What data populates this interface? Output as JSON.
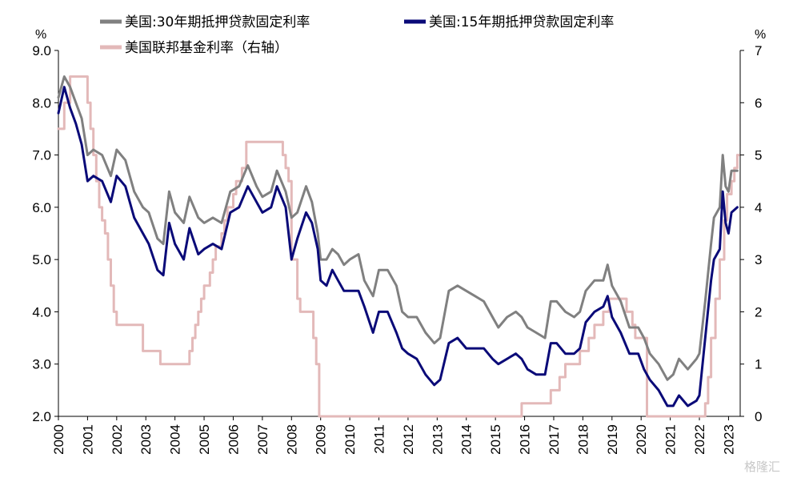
{
  "chart_data": {
    "type": "line",
    "left_unit": "%",
    "right_unit": "%",
    "ylim_left": [
      2.0,
      9.0
    ],
    "ylim_right": [
      0,
      7
    ],
    "left_ticks": [
      "2.0",
      "3.0",
      "4.0",
      "5.0",
      "6.0",
      "7.0",
      "8.0",
      "9.0"
    ],
    "right_ticks": [
      "0",
      "1",
      "2",
      "3",
      "4",
      "5",
      "6",
      "7"
    ],
    "x_ticks": [
      "2000",
      "2001",
      "2002",
      "2003",
      "2004",
      "2005",
      "2006",
      "2007",
      "2008",
      "2009",
      "2010",
      "2011",
      "2012",
      "2013",
      "2014",
      "2015",
      "2016",
      "2017",
      "2018",
      "2019",
      "2020",
      "2021",
      "2022",
      "2023"
    ],
    "xlim": [
      2000.0,
      2023.4
    ],
    "legend_placement": "top",
    "series": [
      {
        "name": "美国:30年期抵押贷款固定利率",
        "axis": "left",
        "color": "#808080",
        "points": [
          [
            2000.0,
            8.1
          ],
          [
            2000.2,
            8.5
          ],
          [
            2000.4,
            8.3
          ],
          [
            2000.6,
            8.0
          ],
          [
            2000.8,
            7.7
          ],
          [
            2001.0,
            7.0
          ],
          [
            2001.2,
            7.1
          ],
          [
            2001.5,
            7.0
          ],
          [
            2001.8,
            6.6
          ],
          [
            2002.0,
            7.1
          ],
          [
            2002.3,
            6.9
          ],
          [
            2002.6,
            6.3
          ],
          [
            2002.9,
            6.0
          ],
          [
            2003.1,
            5.9
          ],
          [
            2003.4,
            5.4
          ],
          [
            2003.6,
            5.3
          ],
          [
            2003.8,
            6.3
          ],
          [
            2004.0,
            5.9
          ],
          [
            2004.3,
            5.7
          ],
          [
            2004.5,
            6.2
          ],
          [
            2004.8,
            5.8
          ],
          [
            2005.0,
            5.7
          ],
          [
            2005.3,
            5.8
          ],
          [
            2005.6,
            5.7
          ],
          [
            2005.9,
            6.3
          ],
          [
            2006.2,
            6.4
          ],
          [
            2006.5,
            6.8
          ],
          [
            2006.8,
            6.4
          ],
          [
            2007.0,
            6.2
          ],
          [
            2007.3,
            6.3
          ],
          [
            2007.5,
            6.7
          ],
          [
            2007.8,
            6.3
          ],
          [
            2008.0,
            5.8
          ],
          [
            2008.2,
            5.9
          ],
          [
            2008.5,
            6.4
          ],
          [
            2008.7,
            6.1
          ],
          [
            2008.9,
            5.5
          ],
          [
            2009.0,
            5.0
          ],
          [
            2009.2,
            5.0
          ],
          [
            2009.4,
            5.2
          ],
          [
            2009.6,
            5.1
          ],
          [
            2009.8,
            4.9
          ],
          [
            2010.0,
            5.0
          ],
          [
            2010.3,
            5.1
          ],
          [
            2010.5,
            4.6
          ],
          [
            2010.8,
            4.3
          ],
          [
            2011.0,
            4.8
          ],
          [
            2011.3,
            4.8
          ],
          [
            2011.6,
            4.5
          ],
          [
            2011.8,
            4.0
          ],
          [
            2012.0,
            3.9
          ],
          [
            2012.3,
            3.9
          ],
          [
            2012.6,
            3.6
          ],
          [
            2012.9,
            3.4
          ],
          [
            2013.1,
            3.5
          ],
          [
            2013.4,
            4.4
          ],
          [
            2013.7,
            4.5
          ],
          [
            2014.0,
            4.4
          ],
          [
            2014.3,
            4.3
          ],
          [
            2014.6,
            4.2
          ],
          [
            2014.9,
            3.9
          ],
          [
            2015.1,
            3.7
          ],
          [
            2015.4,
            3.9
          ],
          [
            2015.7,
            4.0
          ],
          [
            2015.9,
            3.9
          ],
          [
            2016.1,
            3.7
          ],
          [
            2016.4,
            3.6
          ],
          [
            2016.7,
            3.5
          ],
          [
            2016.9,
            4.2
          ],
          [
            2017.1,
            4.2
          ],
          [
            2017.4,
            4.0
          ],
          [
            2017.7,
            3.9
          ],
          [
            2017.9,
            4.0
          ],
          [
            2018.1,
            4.4
          ],
          [
            2018.4,
            4.6
          ],
          [
            2018.7,
            4.6
          ],
          [
            2018.85,
            4.9
          ],
          [
            2019.0,
            4.5
          ],
          [
            2019.3,
            4.2
          ],
          [
            2019.6,
            3.7
          ],
          [
            2019.9,
            3.7
          ],
          [
            2020.1,
            3.5
          ],
          [
            2020.3,
            3.2
          ],
          [
            2020.6,
            3.0
          ],
          [
            2020.9,
            2.7
          ],
          [
            2021.1,
            2.8
          ],
          [
            2021.3,
            3.1
          ],
          [
            2021.6,
            2.9
          ],
          [
            2021.9,
            3.1
          ],
          [
            2022.0,
            3.2
          ],
          [
            2022.2,
            4.2
          ],
          [
            2022.4,
            5.3
          ],
          [
            2022.5,
            5.8
          ],
          [
            2022.7,
            6.0
          ],
          [
            2022.8,
            7.0
          ],
          [
            2022.9,
            6.4
          ],
          [
            2023.0,
            6.3
          ],
          [
            2023.1,
            6.7
          ],
          [
            2023.3,
            6.7
          ]
        ]
      },
      {
        "name": "美国:15年期抵押贷款固定利率",
        "axis": "left",
        "color": "#0a0a78",
        "points": [
          [
            2000.0,
            7.8
          ],
          [
            2000.2,
            8.3
          ],
          [
            2000.4,
            7.9
          ],
          [
            2000.6,
            7.6
          ],
          [
            2000.8,
            7.2
          ],
          [
            2001.0,
            6.5
          ],
          [
            2001.2,
            6.6
          ],
          [
            2001.5,
            6.5
          ],
          [
            2001.8,
            6.1
          ],
          [
            2002.0,
            6.6
          ],
          [
            2002.3,
            6.4
          ],
          [
            2002.6,
            5.8
          ],
          [
            2002.9,
            5.5
          ],
          [
            2003.1,
            5.3
          ],
          [
            2003.4,
            4.8
          ],
          [
            2003.6,
            4.7
          ],
          [
            2003.8,
            5.7
          ],
          [
            2004.0,
            5.3
          ],
          [
            2004.3,
            5.0
          ],
          [
            2004.5,
            5.6
          ],
          [
            2004.8,
            5.1
          ],
          [
            2005.0,
            5.2
          ],
          [
            2005.3,
            5.3
          ],
          [
            2005.6,
            5.2
          ],
          [
            2005.9,
            5.9
          ],
          [
            2006.2,
            6.0
          ],
          [
            2006.5,
            6.4
          ],
          [
            2006.8,
            6.1
          ],
          [
            2007.0,
            5.9
          ],
          [
            2007.3,
            6.0
          ],
          [
            2007.5,
            6.4
          ],
          [
            2007.8,
            6.0
          ],
          [
            2008.0,
            5.0
          ],
          [
            2008.2,
            5.4
          ],
          [
            2008.5,
            5.9
          ],
          [
            2008.7,
            5.7
          ],
          [
            2008.9,
            5.2
          ],
          [
            2009.0,
            4.6
          ],
          [
            2009.2,
            4.5
          ],
          [
            2009.4,
            4.8
          ],
          [
            2009.6,
            4.6
          ],
          [
            2009.8,
            4.4
          ],
          [
            2010.0,
            4.4
          ],
          [
            2010.3,
            4.4
          ],
          [
            2010.5,
            4.1
          ],
          [
            2010.8,
            3.6
          ],
          [
            2011.0,
            4.0
          ],
          [
            2011.3,
            4.0
          ],
          [
            2011.6,
            3.6
          ],
          [
            2011.8,
            3.3
          ],
          [
            2012.0,
            3.2
          ],
          [
            2012.3,
            3.1
          ],
          [
            2012.6,
            2.8
          ],
          [
            2012.9,
            2.6
          ],
          [
            2013.1,
            2.7
          ],
          [
            2013.4,
            3.4
          ],
          [
            2013.7,
            3.5
          ],
          [
            2014.0,
            3.3
          ],
          [
            2014.3,
            3.3
          ],
          [
            2014.6,
            3.3
          ],
          [
            2014.9,
            3.1
          ],
          [
            2015.1,
            3.0
          ],
          [
            2015.4,
            3.1
          ],
          [
            2015.7,
            3.2
          ],
          [
            2015.9,
            3.1
          ],
          [
            2016.1,
            2.9
          ],
          [
            2016.4,
            2.8
          ],
          [
            2016.7,
            2.8
          ],
          [
            2016.9,
            3.4
          ],
          [
            2017.1,
            3.4
          ],
          [
            2017.4,
            3.2
          ],
          [
            2017.7,
            3.2
          ],
          [
            2017.9,
            3.3
          ],
          [
            2018.1,
            3.8
          ],
          [
            2018.4,
            4.0
          ],
          [
            2018.7,
            4.1
          ],
          [
            2018.85,
            4.3
          ],
          [
            2019.0,
            3.9
          ],
          [
            2019.3,
            3.6
          ],
          [
            2019.6,
            3.2
          ],
          [
            2019.9,
            3.2
          ],
          [
            2020.1,
            2.9
          ],
          [
            2020.3,
            2.7
          ],
          [
            2020.6,
            2.5
          ],
          [
            2020.9,
            2.2
          ],
          [
            2021.1,
            2.2
          ],
          [
            2021.3,
            2.4
          ],
          [
            2021.6,
            2.2
          ],
          [
            2021.9,
            2.3
          ],
          [
            2022.0,
            2.4
          ],
          [
            2022.2,
            3.5
          ],
          [
            2022.4,
            4.6
          ],
          [
            2022.5,
            5.0
          ],
          [
            2022.7,
            5.2
          ],
          [
            2022.8,
            6.3
          ],
          [
            2022.9,
            5.7
          ],
          [
            2023.0,
            5.5
          ],
          [
            2023.1,
            5.9
          ],
          [
            2023.3,
            6.0
          ]
        ]
      },
      {
        "name": "美国联邦基金利率（右轴）",
        "axis": "right",
        "color": "#e3b9b9",
        "points": [
          [
            2000.0,
            5.5
          ],
          [
            2000.2,
            6.0
          ],
          [
            2000.4,
            6.5
          ],
          [
            2000.9,
            6.5
          ],
          [
            2001.0,
            6.0
          ],
          [
            2001.1,
            5.5
          ],
          [
            2001.2,
            5.0
          ],
          [
            2001.3,
            4.5
          ],
          [
            2001.4,
            4.0
          ],
          [
            2001.5,
            3.75
          ],
          [
            2001.6,
            3.5
          ],
          [
            2001.7,
            3.0
          ],
          [
            2001.8,
            2.5
          ],
          [
            2001.9,
            2.0
          ],
          [
            2002.0,
            1.75
          ],
          [
            2002.9,
            1.25
          ],
          [
            2003.5,
            1.0
          ],
          [
            2004.5,
            1.25
          ],
          [
            2004.6,
            1.5
          ],
          [
            2004.7,
            1.75
          ],
          [
            2004.8,
            2.0
          ],
          [
            2004.9,
            2.25
          ],
          [
            2005.0,
            2.5
          ],
          [
            2005.2,
            2.75
          ],
          [
            2005.3,
            3.0
          ],
          [
            2005.4,
            3.25
          ],
          [
            2005.6,
            3.5
          ],
          [
            2005.7,
            3.75
          ],
          [
            2005.8,
            4.0
          ],
          [
            2006.0,
            4.25
          ],
          [
            2006.1,
            4.5
          ],
          [
            2006.3,
            4.75
          ],
          [
            2006.45,
            5.25
          ],
          [
            2007.7,
            5.0
          ],
          [
            2007.8,
            4.75
          ],
          [
            2007.9,
            4.5
          ],
          [
            2008.0,
            3.0
          ],
          [
            2008.2,
            2.25
          ],
          [
            2008.3,
            2.0
          ],
          [
            2008.75,
            1.5
          ],
          [
            2008.85,
            1.0
          ],
          [
            2008.95,
            0.0
          ],
          [
            2015.9,
            0.25
          ],
          [
            2016.9,
            0.5
          ],
          [
            2017.2,
            0.75
          ],
          [
            2017.4,
            1.0
          ],
          [
            2017.9,
            1.25
          ],
          [
            2018.2,
            1.5
          ],
          [
            2018.4,
            1.75
          ],
          [
            2018.7,
            2.0
          ],
          [
            2018.9,
            2.25
          ],
          [
            2019.5,
            2.0
          ],
          [
            2019.7,
            1.75
          ],
          [
            2019.8,
            1.5
          ],
          [
            2020.2,
            0.0
          ],
          [
            2022.2,
            0.25
          ],
          [
            2022.3,
            0.75
          ],
          [
            2022.4,
            1.5
          ],
          [
            2022.55,
            2.25
          ],
          [
            2022.7,
            3.0
          ],
          [
            2022.85,
            3.75
          ],
          [
            2022.95,
            4.25
          ],
          [
            2023.1,
            4.5
          ],
          [
            2023.2,
            4.75
          ],
          [
            2023.3,
            5.0
          ]
        ]
      }
    ]
  },
  "watermark": "格隆汇"
}
